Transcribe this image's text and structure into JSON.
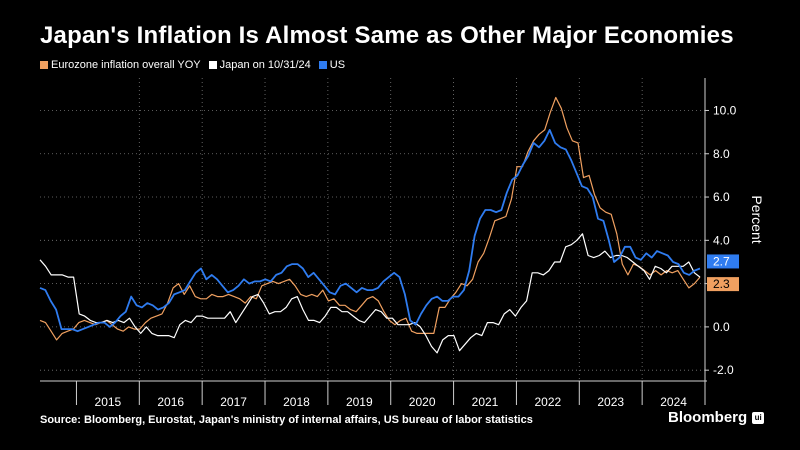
{
  "title": "Japan's Inflation Is Almost Same as Other Major Economies",
  "source": "Source: Bloomberg, Eurostat, Japan's ministry of internal affairs, US bureau of labor statistics",
  "brand": {
    "name": "Bloomberg",
    "icon": "ui"
  },
  "chart_data": {
    "type": "line",
    "title": "Japan's Inflation Is Almost Same as Other Major Economies",
    "xlabel": "",
    "ylabel": "Percent",
    "x_start": 2014.42,
    "x_end": 2024.92,
    "xlim": [
      2014.42,
      2025.0
    ],
    "ylim": [
      -2.5,
      11.5
    ],
    "yticks": [
      -2.0,
      0.0,
      2.0,
      4.0,
      6.0,
      8.0,
      10.0
    ],
    "ytick_labels": [
      "-2.0",
      "0.0",
      "2.0",
      "4.0",
      "6.0",
      "8.0",
      "10.0"
    ],
    "xticks": [
      2015,
      2016,
      2017,
      2018,
      2019,
      2020,
      2021,
      2022,
      2023,
      2024
    ],
    "grid": true,
    "legend_position": "top-left",
    "series": [
      {
        "name": "Eurozone inflation overall YOY",
        "color": "#f0a060",
        "last_label": "2.3",
        "values": [
          0.3,
          0.2,
          -0.2,
          -0.6,
          -0.3,
          -0.2,
          -0.1,
          0.2,
          0.3,
          0.2,
          0.1,
          0.2,
          0.3,
          0.1,
          -0.1,
          -0.2,
          0.0,
          -0.1,
          -0.1,
          0.2,
          0.4,
          0.5,
          0.6,
          1.1,
          1.8,
          2.0,
          1.5,
          1.9,
          1.4,
          1.3,
          1.3,
          1.5,
          1.4,
          1.4,
          1.5,
          1.4,
          1.3,
          1.1,
          1.4,
          1.3,
          1.9,
          2.0,
          2.1,
          2.0,
          2.1,
          2.2,
          1.9,
          1.5,
          1.4,
          1.5,
          1.4,
          1.7,
          1.2,
          1.3,
          1.0,
          1.0,
          0.8,
          0.7,
          1.0,
          1.3,
          1.4,
          1.2,
          0.7,
          0.3,
          0.1,
          0.3,
          0.4,
          -0.2,
          -0.3,
          -0.3,
          -0.3,
          -0.3,
          0.9,
          0.9,
          1.3,
          1.6,
          2.0,
          1.9,
          2.2,
          3.0,
          3.4,
          4.1,
          4.9,
          5.0,
          5.1,
          5.9,
          7.4,
          7.4,
          8.1,
          8.6,
          8.9,
          9.1,
          9.9,
          10.6,
          10.1,
          9.2,
          8.6,
          8.5,
          6.9,
          7.0,
          6.1,
          5.5,
          5.3,
          5.2,
          4.3,
          2.9,
          2.4,
          2.9,
          2.8,
          2.6,
          2.4,
          2.6,
          2.4,
          2.6,
          2.5,
          2.6,
          2.2,
          1.8,
          2.0,
          2.3
        ]
      },
      {
        "name": "Japan on 10/31/24",
        "color": "#ffffff",
        "last_label": "",
        "values": [
          3.1,
          2.8,
          2.4,
          2.4,
          2.4,
          2.3,
          2.3,
          0.6,
          0.5,
          0.3,
          0.2,
          0.2,
          0.3,
          0.2,
          0.3,
          0.2,
          0.4,
          0.0,
          -0.3,
          0.0,
          -0.3,
          -0.4,
          -0.4,
          -0.4,
          -0.5,
          0.1,
          0.3,
          0.2,
          0.5,
          0.5,
          0.4,
          0.4,
          0.4,
          0.4,
          0.7,
          0.2,
          0.6,
          1.0,
          1.4,
          1.5,
          1.1,
          0.6,
          0.7,
          0.7,
          0.9,
          1.3,
          1.4,
          0.8,
          0.3,
          0.3,
          0.2,
          0.5,
          0.9,
          0.9,
          0.7,
          0.7,
          0.5,
          0.3,
          0.2,
          0.5,
          0.8,
          0.7,
          0.4,
          0.4,
          0.1,
          0.1,
          0.1,
          0.2,
          0.0,
          -0.4,
          -0.9,
          -1.2,
          -0.6,
          -0.4,
          -0.4,
          -1.1,
          -0.8,
          -0.5,
          -0.3,
          -0.4,
          0.2,
          0.2,
          0.1,
          0.6,
          0.8,
          0.5,
          0.9,
          1.2,
          2.5,
          2.5,
          2.4,
          2.6,
          3.0,
          3.0,
          3.7,
          3.8,
          4.0,
          4.3,
          3.3,
          3.2,
          3.3,
          3.5,
          3.2,
          3.3,
          3.3,
          3.2,
          3.0,
          2.8,
          2.6,
          2.2,
          2.8,
          2.7,
          2.5,
          2.8,
          2.8,
          2.8,
          3.0,
          2.5,
          2.3
        ]
      },
      {
        "name": "US",
        "color": "#2f7cf0",
        "last_label": "2.7",
        "values": [
          1.8,
          1.7,
          1.2,
          0.8,
          -0.1,
          -0.1,
          -0.1,
          -0.2,
          -0.1,
          0.0,
          0.1,
          0.2,
          0.2,
          0.0,
          0.2,
          0.5,
          0.7,
          1.4,
          1.0,
          0.9,
          1.1,
          1.0,
          0.8,
          0.9,
          1.1,
          1.5,
          1.6,
          1.7,
          2.1,
          2.5,
          2.7,
          2.2,
          2.4,
          2.2,
          1.9,
          1.6,
          1.7,
          1.9,
          2.2,
          2.0,
          2.1,
          2.1,
          2.2,
          2.1,
          2.4,
          2.5,
          2.8,
          2.9,
          2.9,
          2.7,
          2.3,
          2.5,
          2.2,
          1.9,
          1.6,
          1.5,
          1.9,
          2.0,
          1.8,
          1.6,
          1.8,
          1.7,
          1.7,
          1.8,
          2.1,
          2.3,
          2.5,
          2.3,
          1.5,
          0.3,
          0.1,
          0.6,
          1.0,
          1.3,
          1.4,
          1.2,
          1.2,
          1.4,
          1.4,
          1.7,
          2.6,
          4.2,
          5.0,
          5.4,
          5.4,
          5.3,
          5.4,
          6.2,
          6.8,
          7.0,
          7.5,
          7.9,
          8.5,
          8.3,
          8.6,
          9.1,
          8.5,
          8.3,
          8.2,
          7.7,
          7.1,
          6.5,
          6.4,
          6.0,
          5.0,
          4.9,
          4.0,
          3.0,
          3.2,
          3.7,
          3.7,
          3.2,
          3.1,
          3.4,
          3.2,
          3.5,
          3.4,
          3.3,
          3.0,
          2.9,
          2.5,
          2.4,
          2.6,
          2.7
        ]
      }
    ]
  }
}
